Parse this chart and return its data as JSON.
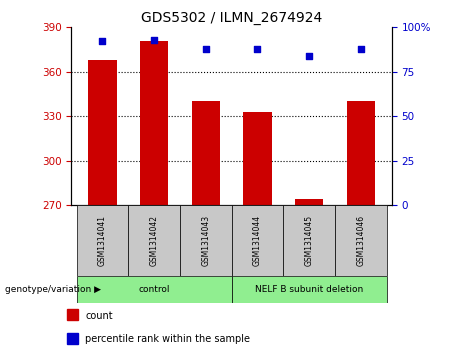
{
  "title": "GDS5302 / ILMN_2674924",
  "samples": [
    "GSM1314041",
    "GSM1314042",
    "GSM1314043",
    "GSM1314044",
    "GSM1314045",
    "GSM1314046"
  ],
  "counts": [
    368,
    381,
    340,
    333,
    274,
    340
  ],
  "percentiles": [
    92,
    93,
    88,
    88,
    84,
    88
  ],
  "ylim_left": [
    270,
    390
  ],
  "ylim_right": [
    0,
    100
  ],
  "yticks_left": [
    270,
    300,
    330,
    360,
    390
  ],
  "yticks_right": [
    0,
    25,
    50,
    75,
    100
  ],
  "bar_color": "#cc0000",
  "dot_color": "#0000cc",
  "bar_bottom": 270,
  "group_box_color": "#c8c8c8",
  "legend_items": [
    {
      "label": "count",
      "color": "#cc0000"
    },
    {
      "label": "percentile rank within the sample",
      "color": "#0000cc"
    }
  ],
  "xlabel_area_label": "genotype/variation",
  "background_color": "#ffffff",
  "plot_bg_color": "#ffffff",
  "grid_color": "#000000",
  "tick_label_color_left": "#cc0000",
  "tick_label_color_right": "#0000cc",
  "group_defs": [
    {
      "label": "control",
      "start": 0,
      "end": 2,
      "color": "#90ee90"
    },
    {
      "label": "NELF B subunit deletion",
      "start": 3,
      "end": 5,
      "color": "#90ee90"
    }
  ]
}
